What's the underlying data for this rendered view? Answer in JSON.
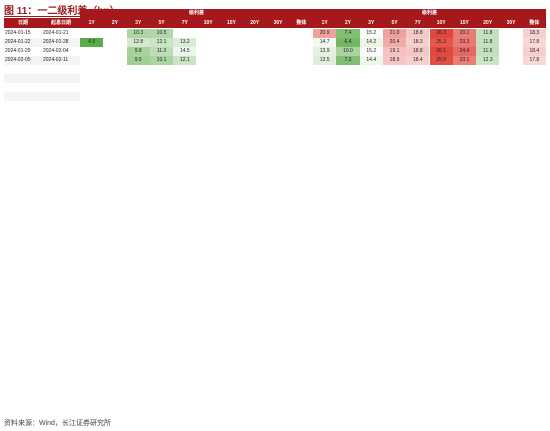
{
  "title": "图 11：一二级利差（bp）",
  "source": "资料来源：Wind，长江证券研究所",
  "columns": [
    "日期",
    "起息日期",
    "1Y",
    "2Y",
    "3Y",
    "5Y",
    "7Y",
    "10Y",
    "15Y",
    "20Y",
    "30Y",
    "整体",
    "1Y",
    "2Y",
    "3Y",
    "5Y",
    "7Y",
    "10Y",
    "15Y",
    "20Y",
    "30Y",
    "整体"
  ],
  "groups": [
    "级利差",
    "级利差"
  ],
  "chart_data": {
    "type": "table",
    "headers": [
      "日期",
      "起息日期",
      "1Y",
      "2Y",
      "3Y",
      "5Y",
      "7Y",
      "10Y",
      "15Y",
      "20Y",
      "30Y",
      "整体",
      "1Y",
      "2Y",
      "3Y",
      "5Y",
      "7Y",
      "10Y",
      "15Y",
      "20Y",
      "30Y",
      "整体"
    ],
    "rows": [
      [
        "2024-01-15",
        "2024-01-21",
        "",
        "",
        "10.3",
        "10.5",
        "",
        "",
        "",
        "",
        "",
        "",
        "20.9",
        "7.4",
        "15.2",
        "21.0",
        "18.8",
        "26.3",
        "23.1",
        "11.8",
        "",
        "18.3"
      ],
      [
        "2024-01-22",
        "2024-01-28",
        "4.9",
        "",
        "12.8",
        "12.1",
        "13.2",
        "",
        "",
        "",
        "",
        "",
        "14.7",
        "6.4",
        "14.2",
        "20.4",
        "18.3",
        "25.3",
        "23.3",
        "11.8",
        "",
        "17.8"
      ],
      [
        "2024-01-29",
        "2024-02-04",
        "",
        "",
        "9.8",
        "11.3",
        "14.5",
        "",
        "",
        "",
        "",
        "",
        "13.9",
        "10.0",
        "15.2",
        "19.1",
        "18.8",
        "26.1",
        "24.4",
        "11.6",
        "",
        "18.4"
      ],
      [
        "2024-02-05",
        "2024-02-11",
        "",
        "",
        "9.5",
        "10.1",
        "12.1",
        "",
        "",
        "",
        "",
        "",
        "13.5",
        "7.3",
        "14.4",
        "18.9",
        "18.4",
        "25.9",
        "23.1",
        "12.3",
        "",
        "17.8"
      ],
      [
        "",
        "",
        "",
        "",
        "",
        "",
        "",
        "",
        "",
        "",
        "",
        "",
        "",
        "",
        "",
        "",
        "",
        "",
        "",
        "",
        "",
        ""
      ],
      [
        "",
        "",
        "",
        "",
        "",
        "",
        "",
        "",
        "",
        "",
        "",
        "",
        "",
        "",
        "",
        "",
        "",
        "",
        "",
        "",
        "",
        ""
      ],
      [
        "",
        "",
        "",
        "",
        "",
        "",
        "",
        "",
        "",
        "",
        "",
        "",
        "",
        "",
        "",
        "",
        "",
        "",
        "",
        "",
        "",
        ""
      ],
      [
        "",
        "",
        "",
        "",
        "",
        "",
        "",
        "",
        "",
        "",
        "",
        "",
        "",
        "",
        "",
        "",
        "",
        "",
        "",
        "",
        "",
        ""
      ]
    ]
  },
  "colors": {
    "header": "#a5191d",
    "high": "#e0463c",
    "low": "#5cab4a"
  }
}
